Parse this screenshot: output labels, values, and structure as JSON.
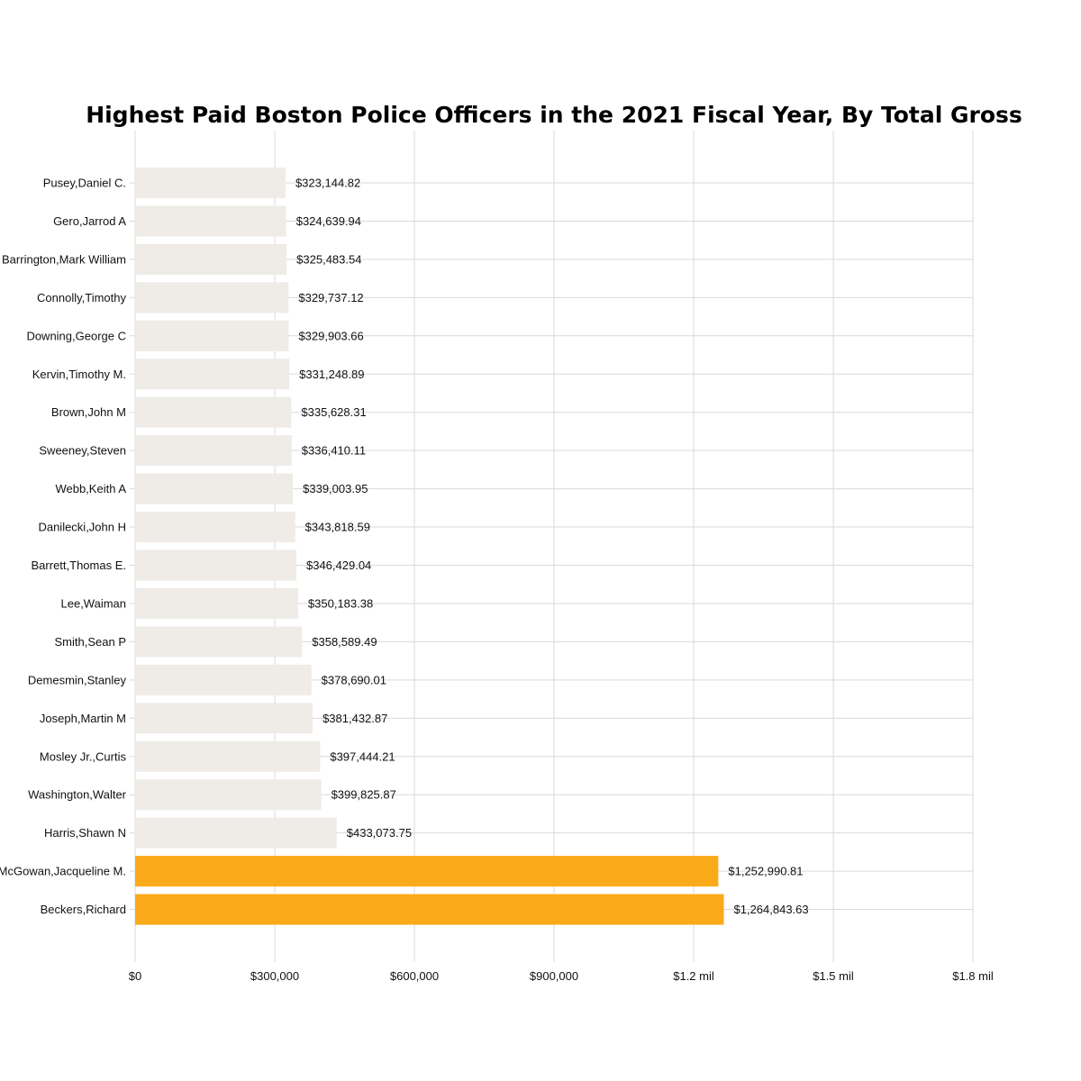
{
  "chart_data": {
    "type": "bar",
    "orientation": "horizontal",
    "title": "Highest Paid Boston Police Officers in the 2021 Fiscal Year, By Total Gross",
    "xlabel": "",
    "ylabel": "",
    "xlim": [
      0,
      1800000
    ],
    "x_ticks": [
      0,
      300000,
      600000,
      900000,
      1200000,
      1500000,
      1800000
    ],
    "x_tick_labels": [
      "$0",
      "$300,000",
      "$600,000",
      "$900,000",
      "$1.2 mil",
      "$1.5 mil",
      "$1.8 mil"
    ],
    "grid": "on",
    "legend": "none",
    "categories": [
      "Pusey,Daniel C.",
      "Gero,Jarrod A",
      "Barrington,Mark William",
      "Connolly,Timothy",
      "Downing,George C",
      "Kervin,Timothy M.",
      "Brown,John M",
      "Sweeney,Steven",
      "Webb,Keith A",
      "Danilecki,John H",
      "Barrett,Thomas E.",
      "Lee,Waiman",
      "Smith,Sean P",
      "Demesmin,Stanley",
      "Joseph,Martin M",
      "Mosley Jr.,Curtis",
      "Washington,Walter",
      "Harris,Shawn N",
      "McGowan,Jacqueline M.",
      "Beckers,Richard"
    ],
    "values": [
      323144.82,
      324639.94,
      325483.54,
      329737.12,
      329903.66,
      331248.89,
      335628.31,
      336410.11,
      339003.95,
      343818.59,
      346429.04,
      350183.38,
      358589.49,
      378690.01,
      381432.87,
      397444.21,
      399825.87,
      433073.75,
      1252990.81,
      1264843.63
    ],
    "value_labels": [
      "$323,144.82",
      "$324,639.94",
      "$325,483.54",
      "$329,737.12",
      "$329,903.66",
      "$331,248.89",
      "$335,628.31",
      "$336,410.11",
      "$339,003.95",
      "$343,818.59",
      "$346,429.04",
      "$350,183.38",
      "$358,589.49",
      "$378,690.01",
      "$381,432.87",
      "$397,444.21",
      "$399,825.87",
      "$433,073.75",
      "$1,252,990.81",
      "$1,264,843.63"
    ],
    "highlighted": [
      false,
      false,
      false,
      false,
      false,
      false,
      false,
      false,
      false,
      false,
      false,
      false,
      false,
      false,
      false,
      false,
      false,
      false,
      true,
      true
    ],
    "colors": {
      "bar": "#efebe7",
      "highlight": "#fbaa19",
      "grid": "#d9d9d9",
      "text": "#111111"
    }
  }
}
